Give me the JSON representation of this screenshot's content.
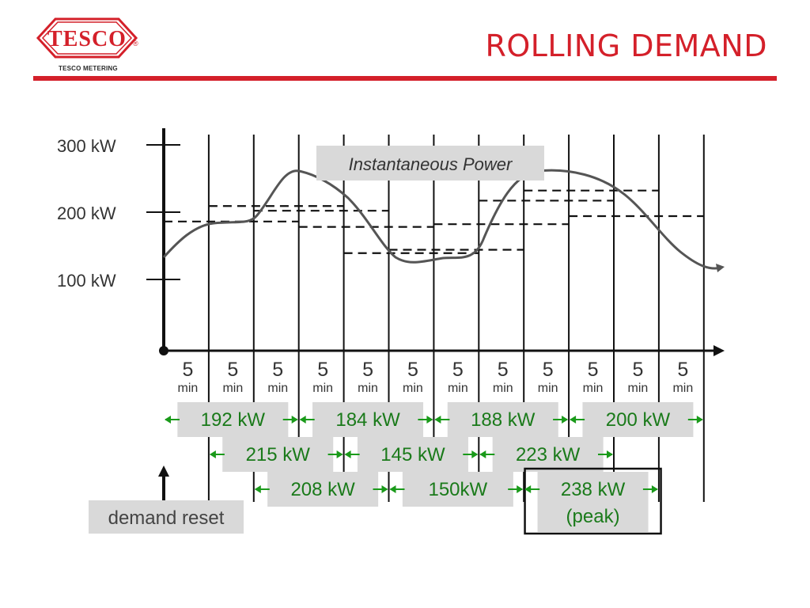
{
  "header": {
    "title": "ROLLING DEMAND",
    "logo_text": "TESCO",
    "logo_subtitle": "TESCO METERING",
    "registered_mark": "®"
  },
  "diagram": {
    "y_labels": [
      "300 kW",
      "200 kW",
      "100 kW"
    ],
    "interval_number": "5",
    "interval_unit": "min",
    "interval_count": 12,
    "curve_label": "Instantaneous Power",
    "reset_label": "demand reset",
    "rows": [
      {
        "row": 1,
        "items": [
          {
            "text": "192 kW",
            "start": 0,
            "end": 3
          },
          {
            "text": "184 kW",
            "start": 3,
            "end": 6
          },
          {
            "text": "188 kW",
            "start": 6,
            "end": 9
          },
          {
            "text": "200 kW",
            "start": 9,
            "end": 12
          }
        ]
      },
      {
        "row": 2,
        "items": [
          {
            "text": "215 kW",
            "start": 1,
            "end": 4
          },
          {
            "text": "145 kW",
            "start": 4,
            "end": 7
          },
          {
            "text": "223 kW",
            "start": 7,
            "end": 10
          }
        ]
      },
      {
        "row": 3,
        "items": [
          {
            "text": "208 kW",
            "start": 2,
            "end": 5
          },
          {
            "text": "150kW",
            "start": 5,
            "end": 8
          },
          {
            "text": "238 kW",
            "text2": "(peak)",
            "start": 8,
            "end": 11,
            "peak": true
          }
        ]
      }
    ],
    "demand_levels_kw": [
      {
        "value": 192,
        "start": 0,
        "end": 3
      },
      {
        "value": 215,
        "start": 1,
        "end": 4
      },
      {
        "value": 208,
        "start": 2,
        "end": 5
      },
      {
        "value": 184,
        "start": 3,
        "end": 6
      },
      {
        "value": 145,
        "start": 4,
        "end": 7
      },
      {
        "value": 150,
        "start": 5,
        "end": 8
      },
      {
        "value": 188,
        "start": 6,
        "end": 9
      },
      {
        "value": 223,
        "start": 7,
        "end": 10
      },
      {
        "value": 238,
        "start": 8,
        "end": 11
      },
      {
        "value": 200,
        "start": 9,
        "end": 12
      }
    ],
    "colors": {
      "brand_red": "#d4202a",
      "label_green": "#1a7a1a",
      "arrow_green": "#1a9a1a",
      "label_bg": "#d9d9d9"
    }
  }
}
